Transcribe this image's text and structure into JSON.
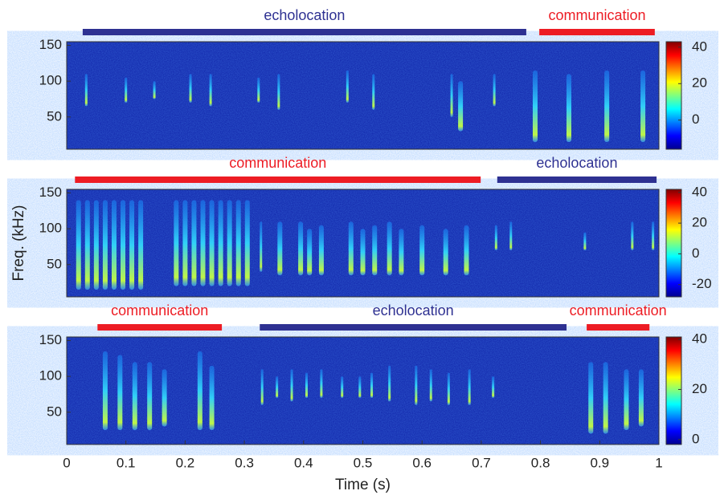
{
  "chart_data": [
    {
      "type": "spectrogram",
      "xlim": [
        0,
        1
      ],
      "ylim": [
        5,
        155
      ],
      "yticks": [
        50,
        100,
        150
      ],
      "clim": [
        -16,
        43
      ],
      "cticks": [
        0,
        20,
        40
      ],
      "segments": [
        {
          "label": "echolocation",
          "color": "#2e3192",
          "start": 0.027,
          "end": 0.776
        },
        {
          "label": "communication",
          "color": "#ed1c24",
          "start": 0.798,
          "end": 0.993
        }
      ],
      "calls": [
        {
          "t": 0.033,
          "fmin": 65,
          "fmax": 110
        },
        {
          "t": 0.1,
          "fmin": 70,
          "fmax": 105
        },
        {
          "t": 0.148,
          "fmin": 75,
          "fmax": 100
        },
        {
          "t": 0.209,
          "fmin": 70,
          "fmax": 110
        },
        {
          "t": 0.243,
          "fmin": 65,
          "fmax": 110
        },
        {
          "t": 0.324,
          "fmin": 70,
          "fmax": 105
        },
        {
          "t": 0.358,
          "fmin": 60,
          "fmax": 110
        },
        {
          "t": 0.474,
          "fmin": 70,
          "fmax": 115
        },
        {
          "t": 0.518,
          "fmin": 60,
          "fmax": 110
        },
        {
          "t": 0.65,
          "fmin": 50,
          "fmax": 110
        },
        {
          "t": 0.665,
          "fmin": 30,
          "fmax": 100
        },
        {
          "t": 0.722,
          "fmin": 65,
          "fmax": 110
        },
        {
          "t": 0.791,
          "fmin": 15,
          "fmax": 115
        },
        {
          "t": 0.848,
          "fmin": 15,
          "fmax": 110
        },
        {
          "t": 0.912,
          "fmin": 15,
          "fmax": 115
        },
        {
          "t": 0.973,
          "fmin": 15,
          "fmax": 115
        }
      ]
    },
    {
      "type": "spectrogram",
      "ylabel": "Freq. (kHz)",
      "xlim": [
        0,
        1
      ],
      "ylim": [
        5,
        155
      ],
      "yticks": [
        50,
        100,
        150
      ],
      "clim": [
        -28,
        42
      ],
      "cticks": [
        -20,
        0,
        20,
        40
      ],
      "segments": [
        {
          "label": "communication",
          "color": "#ed1c24",
          "start": 0.014,
          "end": 0.699
        },
        {
          "label": "echolocation",
          "color": "#2e3192",
          "start": 0.727,
          "end": 0.996
        }
      ],
      "calls": [
        {
          "t": 0.02,
          "fmin": 15,
          "fmax": 140
        },
        {
          "t": 0.035,
          "fmin": 15,
          "fmax": 140
        },
        {
          "t": 0.05,
          "fmin": 15,
          "fmax": 140
        },
        {
          "t": 0.065,
          "fmin": 15,
          "fmax": 140
        },
        {
          "t": 0.08,
          "fmin": 15,
          "fmax": 140
        },
        {
          "t": 0.095,
          "fmin": 15,
          "fmax": 140
        },
        {
          "t": 0.11,
          "fmin": 15,
          "fmax": 140
        },
        {
          "t": 0.125,
          "fmin": 15,
          "fmax": 140
        },
        {
          "t": 0.185,
          "fmin": 20,
          "fmax": 140
        },
        {
          "t": 0.2,
          "fmin": 20,
          "fmax": 140
        },
        {
          "t": 0.215,
          "fmin": 20,
          "fmax": 140
        },
        {
          "t": 0.23,
          "fmin": 20,
          "fmax": 140
        },
        {
          "t": 0.245,
          "fmin": 20,
          "fmax": 140
        },
        {
          "t": 0.26,
          "fmin": 20,
          "fmax": 140
        },
        {
          "t": 0.275,
          "fmin": 20,
          "fmax": 140
        },
        {
          "t": 0.29,
          "fmin": 20,
          "fmax": 140
        },
        {
          "t": 0.305,
          "fmin": 20,
          "fmax": 140
        },
        {
          "t": 0.328,
          "fmin": 40,
          "fmax": 110
        },
        {
          "t": 0.36,
          "fmin": 35,
          "fmax": 110
        },
        {
          "t": 0.395,
          "fmin": 35,
          "fmax": 110
        },
        {
          "t": 0.41,
          "fmin": 35,
          "fmax": 100
        },
        {
          "t": 0.43,
          "fmin": 35,
          "fmax": 105
        },
        {
          "t": 0.48,
          "fmin": 35,
          "fmax": 110
        },
        {
          "t": 0.5,
          "fmin": 35,
          "fmax": 100
        },
        {
          "t": 0.52,
          "fmin": 35,
          "fmax": 105
        },
        {
          "t": 0.545,
          "fmin": 35,
          "fmax": 110
        },
        {
          "t": 0.565,
          "fmin": 35,
          "fmax": 100
        },
        {
          "t": 0.6,
          "fmin": 35,
          "fmax": 105
        },
        {
          "t": 0.64,
          "fmin": 35,
          "fmax": 100
        },
        {
          "t": 0.675,
          "fmin": 35,
          "fmax": 105
        },
        {
          "t": 0.725,
          "fmin": 70,
          "fmax": 105
        },
        {
          "t": 0.75,
          "fmin": 70,
          "fmax": 110
        },
        {
          "t": 0.875,
          "fmin": 70,
          "fmax": 95
        },
        {
          "t": 0.955,
          "fmin": 70,
          "fmax": 110
        },
        {
          "t": 0.99,
          "fmin": 70,
          "fmax": 110
        }
      ]
    },
    {
      "type": "spectrogram",
      "xlabel": "Time (s)",
      "xlim": [
        0,
        1
      ],
      "xticks": [
        0,
        0.1,
        0.2,
        0.3,
        0.4,
        0.5,
        0.6,
        0.7,
        0.8,
        0.9,
        1
      ],
      "ylim": [
        5,
        155
      ],
      "yticks": [
        50,
        100,
        150
      ],
      "clim": [
        -2,
        41
      ],
      "cticks": [
        0,
        20,
        40
      ],
      "segments": [
        {
          "label": "communication",
          "color": "#ed1c24",
          "start": 0.052,
          "end": 0.262
        },
        {
          "label": "echolocation",
          "color": "#2e3192",
          "start": 0.326,
          "end": 0.844
        },
        {
          "label": "communication",
          "color": "#ed1c24",
          "start": 0.878,
          "end": 0.984
        }
      ],
      "calls": [
        {
          "t": 0.065,
          "fmin": 25,
          "fmax": 135
        },
        {
          "t": 0.09,
          "fmin": 25,
          "fmax": 130
        },
        {
          "t": 0.115,
          "fmin": 25,
          "fmax": 120
        },
        {
          "t": 0.14,
          "fmin": 25,
          "fmax": 120
        },
        {
          "t": 0.165,
          "fmin": 30,
          "fmax": 110
        },
        {
          "t": 0.225,
          "fmin": 25,
          "fmax": 135
        },
        {
          "t": 0.245,
          "fmin": 25,
          "fmax": 115
        },
        {
          "t": 0.33,
          "fmin": 60,
          "fmax": 110
        },
        {
          "t": 0.355,
          "fmin": 70,
          "fmax": 100
        },
        {
          "t": 0.38,
          "fmin": 65,
          "fmax": 110
        },
        {
          "t": 0.405,
          "fmin": 70,
          "fmax": 105
        },
        {
          "t": 0.43,
          "fmin": 70,
          "fmax": 110
        },
        {
          "t": 0.465,
          "fmin": 70,
          "fmax": 100
        },
        {
          "t": 0.495,
          "fmin": 70,
          "fmax": 100
        },
        {
          "t": 0.515,
          "fmin": 70,
          "fmax": 105
        },
        {
          "t": 0.545,
          "fmin": 65,
          "fmax": 115
        },
        {
          "t": 0.59,
          "fmin": 60,
          "fmax": 115
        },
        {
          "t": 0.615,
          "fmin": 65,
          "fmax": 110
        },
        {
          "t": 0.645,
          "fmin": 60,
          "fmax": 105
        },
        {
          "t": 0.68,
          "fmin": 60,
          "fmax": 110
        },
        {
          "t": 0.72,
          "fmin": 70,
          "fmax": 100
        },
        {
          "t": 0.885,
          "fmin": 20,
          "fmax": 120
        },
        {
          "t": 0.91,
          "fmin": 20,
          "fmax": 120
        },
        {
          "t": 0.945,
          "fmin": 25,
          "fmax": 110
        },
        {
          "t": 0.97,
          "fmin": 30,
          "fmax": 110
        }
      ]
    }
  ]
}
